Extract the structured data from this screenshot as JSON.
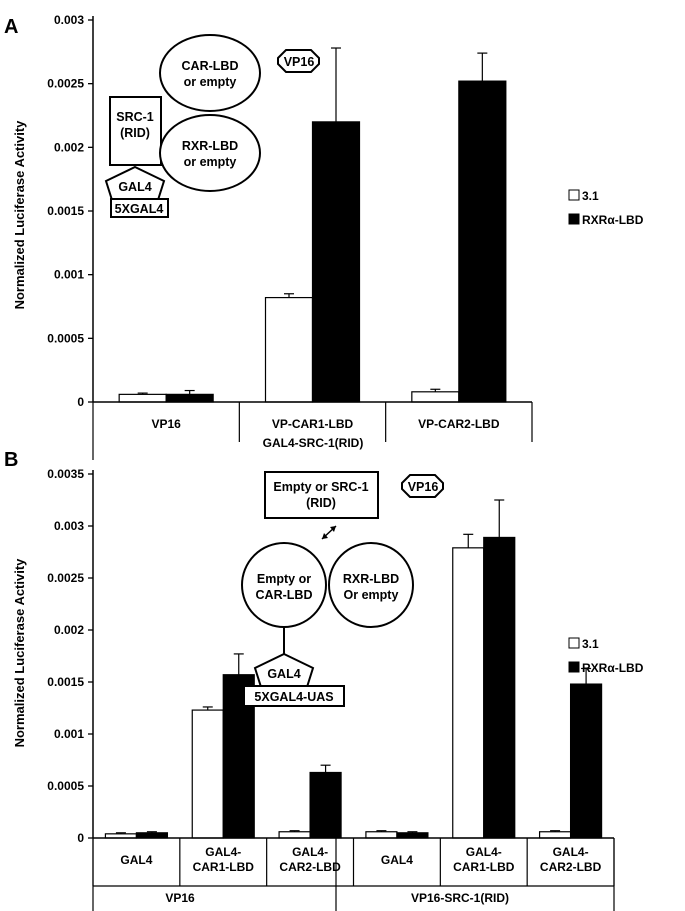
{
  "chart_data": [
    {
      "panel": "A",
      "type": "bar",
      "ylabel": "Normalized Luciferase Activity",
      "ylim": [
        0,
        0.003
      ],
      "yticks": [
        "0",
        "0.0005",
        "0.001",
        "0.0015",
        "0.002",
        "0.0025",
        "0.003"
      ],
      "categories": [
        "VP16",
        "VP-CAR1-LBD",
        "VP-CAR2-LBD"
      ],
      "group_label": "GAL4-SRC-1(RID)",
      "series": [
        {
          "name": "3.1",
          "values": [
            6e-05,
            0.00082,
            8e-05
          ],
          "errors": [
            1e-05,
            3e-05,
            2e-05
          ],
          "color": "#ffffff"
        },
        {
          "name": "RXRα-LBD",
          "values": [
            6e-05,
            0.0022,
            0.00252
          ],
          "errors": [
            3e-05,
            0.00058,
            0.00022
          ],
          "color": "#000000"
        }
      ],
      "legend": "right",
      "diagram": {
        "car_lbd": [
          "CAR-LBD",
          "or empty"
        ],
        "vp16": "VP16",
        "src1": [
          "SRC-1",
          "(RID)"
        ],
        "rxr_lbd": [
          "RXR-LBD",
          "or empty"
        ],
        "gal4": "GAL4",
        "uas": "5XGAL4"
      }
    },
    {
      "panel": "B",
      "type": "bar",
      "ylabel": "Normalized Luciferase Activity",
      "ylim": [
        0,
        0.0035
      ],
      "yticks": [
        "0",
        "0.0005",
        "0.001",
        "0.0015",
        "0.002",
        "0.0025",
        "0.003",
        "0.0035"
      ],
      "categories": [
        [
          "GAL4"
        ],
        [
          "GAL4-",
          "CAR1-LBD"
        ],
        [
          "GAL4-",
          "CAR2-LBD"
        ],
        [
          "GAL4"
        ],
        [
          "GAL4-",
          "CAR1-LBD"
        ],
        [
          "GAL4-",
          "CAR2-LBD"
        ]
      ],
      "groups": [
        "VP16",
        "VP16-SRC-1(RID)"
      ],
      "series": [
        {
          "name": "3.1",
          "values": [
            4e-05,
            0.00123,
            6e-05,
            6e-05,
            0.00279,
            6e-05
          ],
          "errors": [
            1e-05,
            3e-05,
            1e-05,
            1e-05,
            0.00013,
            1e-05
          ],
          "color": "#ffffff"
        },
        {
          "name": "RXRα-LBD",
          "values": [
            5e-05,
            0.00157,
            0.00063,
            5e-05,
            0.00289,
            0.00148
          ],
          "errors": [
            1e-05,
            0.0002,
            7e-05,
            1e-05,
            0.00036,
            0.00015
          ],
          "color": "#000000"
        }
      ],
      "legend": "right",
      "diagram": {
        "src1": [
          "Empty or SRC-1",
          "(RID)"
        ],
        "vp16": "VP16",
        "car_lbd": [
          "Empty or",
          "CAR-LBD"
        ],
        "rxr_lbd": [
          "RXR-LBD",
          "Or empty"
        ],
        "gal4": "GAL4",
        "uas": "5XGAL4-UAS"
      }
    }
  ]
}
